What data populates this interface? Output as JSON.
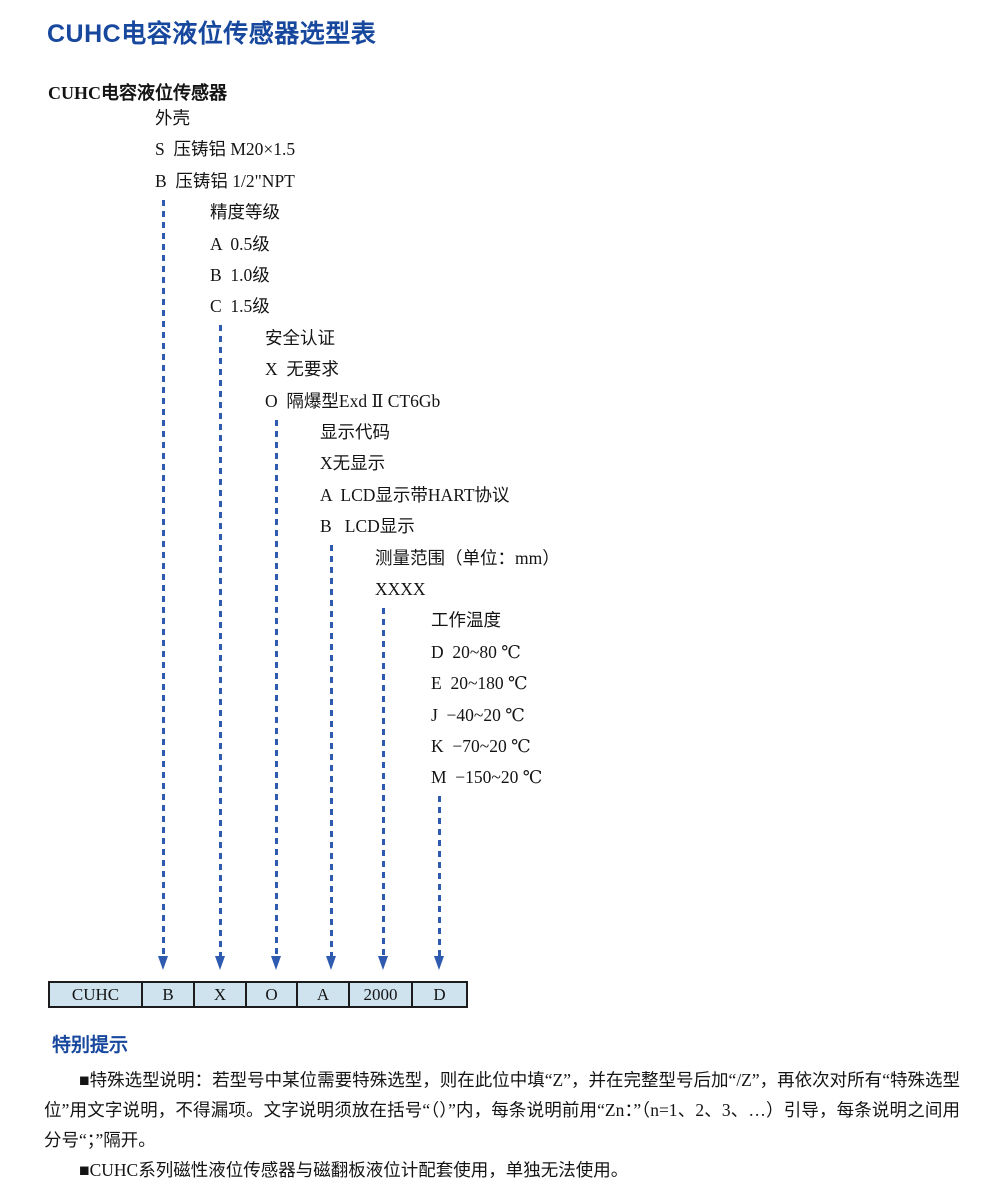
{
  "title": "CUHC电容液位传感器选型表",
  "colors": {
    "heading_blue": "#17489e",
    "connector_blue": "#2e5bb0",
    "table_cell_bg": "#cfe3ef",
    "table_border": "#1c1c1c"
  },
  "diagram": {
    "root": "CUHC电容液位传感器",
    "groups": [
      {
        "label": "外壳",
        "options": [
          "S  压铸铝 M20×1.5",
          "B  压铸铝 1/2\"NPT"
        ]
      },
      {
        "label": "精度等级",
        "options": [
          "A  0.5级",
          "B  1.0级",
          "C  1.5级"
        ]
      },
      {
        "label": "安全认证",
        "options": [
          "X  无要求",
          "O  隔爆型Exd Ⅱ CT6Gb"
        ]
      },
      {
        "label": "显示代码",
        "options": [
          "X无显示",
          "A  LCD显示带HART协议",
          "B   LCD显示"
        ]
      },
      {
        "label": "测量范围（单位：mm）",
        "options": [
          "XXXX"
        ]
      },
      {
        "label": "工作温度",
        "options": [
          "D  20~80 ℃",
          "E  20~180 ℃",
          "J  −40~20 ℃",
          "K  −70~20 ℃",
          "M  −150~20 ℃"
        ]
      }
    ]
  },
  "table": {
    "cells": [
      "CUHC",
      "B",
      "X",
      "O",
      "A",
      "2000",
      "D"
    ]
  },
  "notes": {
    "title": "特别提示",
    "items": [
      "■特殊选型说明：若型号中某位需要特殊选型，则在此位中填“Z”，并在完整型号后加“/Z”，再依次对所有“特殊选型位”用文字说明，不得漏项。文字说明须放在括号“（）”内，每条说明前用“Zn：”（n=1、2、3、…）引导，每条说明之间用分号“；”隔开。",
      "■CUHC系列磁性液位传感器与磁翻板液位计配套使用，单独无法使用。"
    ]
  }
}
